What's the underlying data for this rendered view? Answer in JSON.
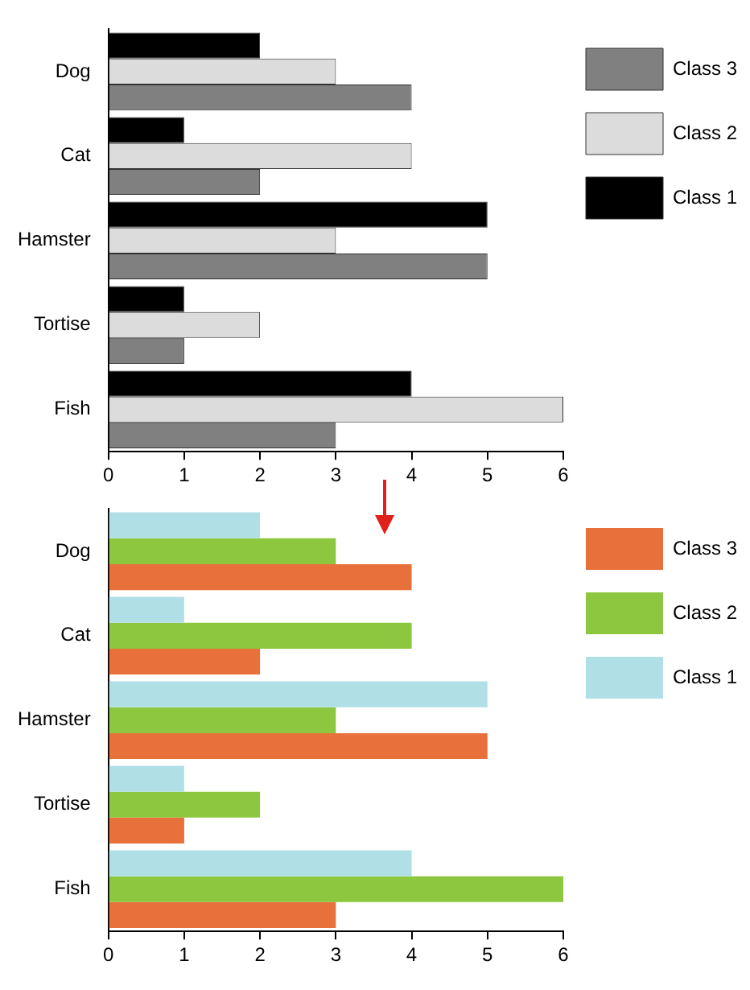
{
  "chart_data": [
    {
      "type": "bar",
      "orientation": "horizontal",
      "categories": [
        "Dog",
        "Cat",
        "Hamster",
        "Tortise",
        "Fish"
      ],
      "series": [
        {
          "name": "Class 1",
          "color": "#000000",
          "values": [
            2,
            1,
            5,
            1,
            4
          ]
        },
        {
          "name": "Class 2",
          "color": "#dcdcdc",
          "values": [
            3,
            4,
            3,
            2,
            6
          ]
        },
        {
          "name": "Class 3",
          "color": "#808080",
          "values": [
            4,
            2,
            5,
            1,
            3
          ]
        }
      ],
      "xlim": [
        0,
        6
      ],
      "xticks": [
        0,
        1,
        2,
        3,
        4,
        5,
        6
      ],
      "grid": false,
      "legend": "top right"
    },
    {
      "type": "bar",
      "orientation": "horizontal",
      "categories": [
        "Dog",
        "Cat",
        "Hamster",
        "Tortise",
        "Fish"
      ],
      "series": [
        {
          "name": "Class 1",
          "color": "#b0e0e6",
          "values": [
            2,
            1,
            5,
            1,
            4
          ]
        },
        {
          "name": "Class 2",
          "color": "#8dc63f",
          "values": [
            3,
            4,
            3,
            2,
            6
          ]
        },
        {
          "name": "Class 3",
          "color": "#e8703a",
          "values": [
            4,
            2,
            5,
            1,
            3
          ]
        }
      ],
      "xlim": [
        0,
        6
      ],
      "xticks": [
        0,
        1,
        2,
        3,
        4,
        5,
        6
      ],
      "grid": false,
      "legend": "top right"
    }
  ]
}
